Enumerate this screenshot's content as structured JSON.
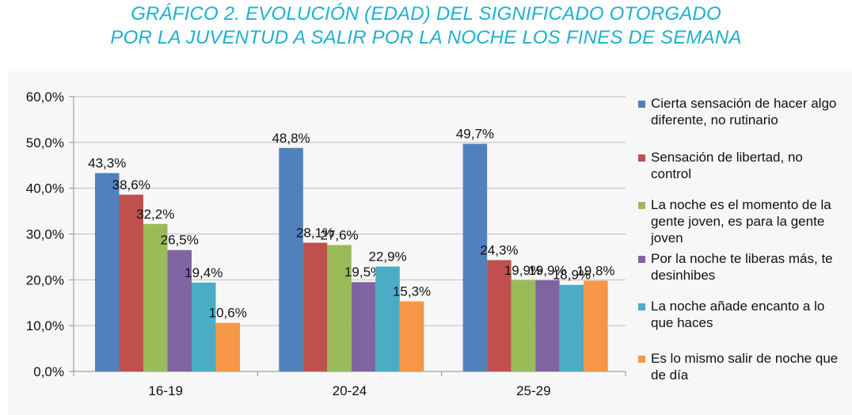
{
  "title_line1": "GRÁFICO 2. EVOLUCIÓN (EDAD) DEL SIGNIFICADO OTORGADO",
  "title_line2": "POR LA JUVENTUD A SALIR POR LA NOCHE LOS FINES DE SEMANA",
  "chart_data": {
    "type": "bar",
    "categories": [
      "16-19",
      "20-24",
      "25-29"
    ],
    "ylim": [
      0,
      60
    ],
    "yticks": [
      "0,0%",
      "10,0%",
      "20,0%",
      "30,0%",
      "40,0%",
      "50,0%",
      "60,0%"
    ],
    "legend_position": "right",
    "grid": true,
    "series": [
      {
        "name": "Cierta sensación de hacer algo diferente, no rutinario",
        "color": "#4f81bd",
        "values": [
          43.3,
          48.8,
          49.7
        ],
        "labels": [
          "43,3%",
          "48,8%",
          "49,7%"
        ]
      },
      {
        "name": "Sensación de libertad, no control",
        "color": "#c0504d",
        "values": [
          38.6,
          28.1,
          24.3
        ],
        "labels": [
          "38,6%",
          "28,1%",
          "24,3%"
        ]
      },
      {
        "name": "La noche es el momento de la gente joven, es para la gente joven",
        "color": "#9bbb59",
        "values": [
          32.2,
          27.6,
          19.9
        ],
        "labels": [
          "32,2%",
          "27,6%",
          "19,9%"
        ]
      },
      {
        "name": "Por la noche te liberas más, te desinhibes",
        "color": "#8064a2",
        "values": [
          26.5,
          19.5,
          19.9
        ],
        "labels": [
          "26,5%",
          "19,5%",
          "19,9%"
        ]
      },
      {
        "name": "La noche añade encanto a lo que haces",
        "color": "#4bacc6",
        "values": [
          19.4,
          22.9,
          18.9
        ],
        "labels": [
          "19,4%",
          "22,9%",
          "18,9%"
        ]
      },
      {
        "name": "Es lo mismo salir de noche que de día",
        "color": "#f79646",
        "values": [
          10.6,
          15.3,
          19.8
        ],
        "labels": [
          "10,6%",
          "15,3%",
          "19,8%"
        ]
      }
    ]
  }
}
